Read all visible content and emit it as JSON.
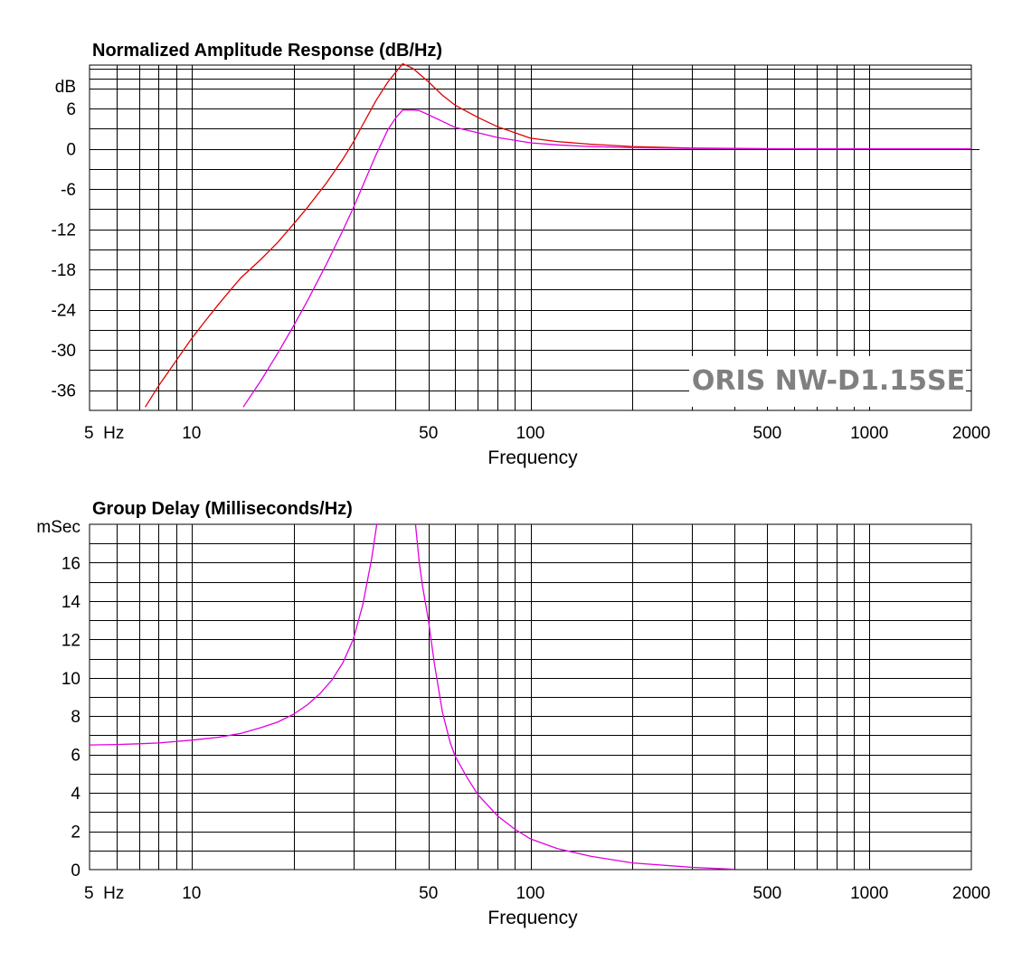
{
  "watermark": "ORIS NW-D1.15SE",
  "chart_data": [
    {
      "type": "line",
      "title": "Normalized Amplitude Response (dB/Hz)",
      "xlabel": "Frequency",
      "ylabel": "dB",
      "x_scale": "log",
      "xlim": [
        5,
        2000
      ],
      "ylim": [
        -39,
        12.5
      ],
      "x_ticks": [
        5,
        10,
        50,
        100,
        500,
        1000,
        2000
      ],
      "x_tick_labels": [
        "5  Hz",
        "10",
        "50",
        "100",
        "500",
        "1000",
        "2000"
      ],
      "y_ticks": [
        6,
        0,
        -6,
        -12,
        -18,
        -24,
        -30,
        -36
      ],
      "y_tick_labels": [
        "6",
        "0",
        "-6",
        "-12",
        "-18",
        "-24",
        "-30",
        "-36"
      ],
      "grid": true,
      "series": [
        {
          "color": "#e00000",
          "x": [
            7.3,
            8,
            9,
            10,
            11,
            12,
            13,
            14,
            16,
            18,
            20,
            22,
            25,
            28,
            30,
            32,
            35,
            38,
            40,
            42,
            45,
            50,
            55,
            60,
            70,
            80,
            90,
            100,
            120,
            150,
            200,
            300,
            500,
            700
          ],
          "y": [
            -38.5,
            -35.3,
            -31.6,
            -28.3,
            -25.6,
            -23.2,
            -21.1,
            -19.2,
            -16.5,
            -13.9,
            -11.2,
            -8.7,
            -5.1,
            -1.5,
            1.0,
            3.6,
            7.2,
            10.0,
            11.4,
            12.7,
            12.0,
            10.0,
            8.0,
            6.5,
            4.7,
            3.3,
            2.4,
            1.6,
            1.1,
            0.7,
            0.35,
            0.12,
            0.03,
            0.0
          ]
        },
        {
          "color": "#e000e0",
          "x": [
            14.2,
            16,
            18,
            20,
            22,
            25,
            28,
            30,
            32,
            35,
            38,
            40,
            42,
            45,
            47,
            50,
            55,
            60,
            70,
            80,
            100,
            120,
            150,
            200,
            300,
            500,
            700,
            1000,
            2000
          ],
          "y": [
            -38.5,
            -34.6,
            -30.4,
            -26.4,
            -22.6,
            -17.2,
            -12.1,
            -8.8,
            -5.5,
            -0.9,
            2.9,
            4.6,
            5.8,
            5.8,
            5.7,
            5.1,
            4.1,
            3.2,
            2.4,
            1.7,
            0.9,
            0.6,
            0.35,
            0.18,
            0.07,
            0.02,
            0.0,
            0.0,
            0.0
          ]
        }
      ]
    },
    {
      "type": "line",
      "title": "Group Delay (Milliseconds/Hz)",
      "xlabel": "Frequency",
      "ylabel": "mSec",
      "x_scale": "log",
      "xlim": [
        5,
        2000
      ],
      "ylim": [
        0,
        18
      ],
      "x_ticks": [
        5,
        10,
        50,
        100,
        500,
        1000,
        2000
      ],
      "x_tick_labels": [
        "5  Hz",
        "10",
        "50",
        "100",
        "500",
        "1000",
        "2000"
      ],
      "y_ticks": [
        16,
        14,
        12,
        10,
        8,
        6,
        4,
        2,
        0
      ],
      "y_tick_labels": [
        "16",
        "14",
        "12",
        "10",
        "8",
        "6",
        "4",
        "2",
        "0"
      ],
      "grid": true,
      "series": [
        {
          "color": "#e000e0",
          "x": [
            5,
            6,
            7,
            8,
            10,
            12,
            14,
            16,
            18,
            20,
            22,
            24,
            26,
            28,
            30,
            32,
            34,
            35.2
          ],
          "y": [
            6.5,
            6.52,
            6.56,
            6.6,
            6.75,
            6.9,
            7.1,
            7.4,
            7.7,
            8.1,
            8.6,
            9.2,
            9.9,
            10.8,
            12.0,
            13.8,
            16.2,
            18.0
          ]
        },
        {
          "color": "#e000e0",
          "x": [
            45.8,
            47,
            48,
            50,
            52,
            55,
            58,
            60,
            65,
            70,
            80,
            90,
            100,
            120,
            150,
            200,
            300,
            400
          ],
          "y": [
            18.0,
            16.0,
            14.8,
            13.0,
            10.8,
            8.2,
            6.6,
            5.9,
            4.8,
            3.9,
            2.8,
            2.1,
            1.6,
            1.1,
            0.7,
            0.35,
            0.12,
            0.02
          ]
        }
      ]
    }
  ]
}
